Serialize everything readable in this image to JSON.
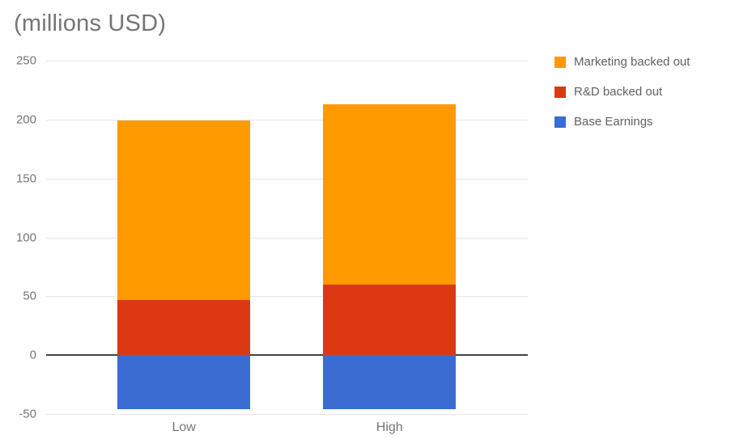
{
  "chart_data": {
    "type": "bar",
    "stacked": true,
    "title": "(millions USD)",
    "categories": [
      "Low",
      "High"
    ],
    "series": [
      {
        "name": "Marketing backed out",
        "color": "#FF9900",
        "values": [
          152,
          153
        ]
      },
      {
        "name": "R&D backed out",
        "color": "#DC3912",
        "values": [
          47,
          60
        ]
      },
      {
        "name": "Base Earnings",
        "color": "#3B6CD1",
        "values": [
          -46,
          -46
        ]
      }
    ],
    "stack_totals": {
      "Low": 199,
      "High": 213
    },
    "xlabel": "",
    "ylabel": "",
    "ylim": [
      -50,
      250
    ],
    "yticks": [
      250,
      200,
      150,
      100,
      50,
      0,
      -50
    ],
    "grid": true,
    "legend_position": "right",
    "legend_order_top_to_bottom": [
      "Marketing backed out",
      "R&D backed out",
      "Base Earnings"
    ],
    "colors": {
      "gridline": "#e6e6e6",
      "zero_line": "#424242",
      "axis_text": "#757575",
      "title_text": "#757575",
      "legend_text": "#616161"
    },
    "layout": {
      "bar_centers_pct": [
        28.6,
        71.3
      ],
      "bar_width_pct": 27.6
    }
  }
}
